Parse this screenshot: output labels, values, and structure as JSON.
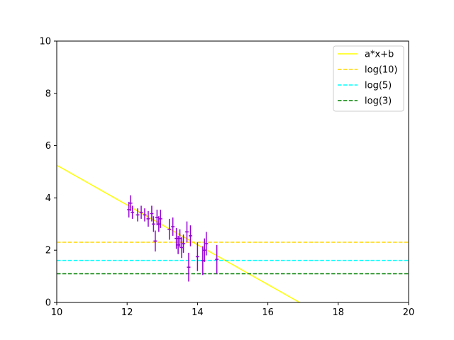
{
  "chart_data": {
    "type": "scatter",
    "title": "",
    "xlabel": "",
    "ylabel": "",
    "xlim": [
      10,
      20
    ],
    "ylim": [
      0,
      10
    ],
    "xticks": [
      10,
      12,
      14,
      16,
      18,
      20
    ],
    "yticks": [
      0,
      2,
      4,
      6,
      8,
      10
    ],
    "grid": false,
    "legend_position": "top-right",
    "series": [
      {
        "name": "a*x+b",
        "kind": "line",
        "color": "#ffff00",
        "style": "solid",
        "x": [
          10,
          16.9
        ],
        "y": [
          5.25,
          0.0
        ]
      },
      {
        "name": "log(10)",
        "kind": "hline",
        "color": "#ffd700",
        "style": "dashed",
        "y": 2.303
      },
      {
        "name": "log(5)",
        "kind": "hline",
        "color": "#00ffff",
        "style": "dashed",
        "y": 1.609
      },
      {
        "name": "log(3)",
        "kind": "hline",
        "color": "#008000",
        "style": "dashed",
        "y": 1.099
      },
      {
        "kind": "errorbar",
        "color": "#9400d3",
        "points": [
          {
            "x": 12.05,
            "y": 3.55,
            "xerr": 0.05,
            "yerr": 0.3
          },
          {
            "x": 12.1,
            "y": 3.8,
            "xerr": 0.05,
            "yerr": 0.3
          },
          {
            "x": 12.15,
            "y": 3.45,
            "xerr": 0.05,
            "yerr": 0.25
          },
          {
            "x": 12.3,
            "y": 3.35,
            "xerr": 0.05,
            "yerr": 0.25
          },
          {
            "x": 12.4,
            "y": 3.45,
            "xerr": 0.05,
            "yerr": 0.25
          },
          {
            "x": 12.5,
            "y": 3.35,
            "xerr": 0.05,
            "yerr": 0.25
          },
          {
            "x": 12.6,
            "y": 3.2,
            "xerr": 0.05,
            "yerr": 0.3
          },
          {
            "x": 12.7,
            "y": 3.4,
            "xerr": 0.05,
            "yerr": 0.3
          },
          {
            "x": 12.75,
            "y": 3.0,
            "xerr": 0.05,
            "yerr": 0.3
          },
          {
            "x": 12.8,
            "y": 2.35,
            "xerr": 0.05,
            "yerr": 0.4
          },
          {
            "x": 12.85,
            "y": 3.25,
            "xerr": 0.05,
            "yerr": 0.3
          },
          {
            "x": 12.9,
            "y": 3.0,
            "xerr": 0.05,
            "yerr": 0.3
          },
          {
            "x": 12.95,
            "y": 3.2,
            "xerr": 0.05,
            "yerr": 0.35
          },
          {
            "x": 13.2,
            "y": 2.8,
            "xerr": 0.05,
            "yerr": 0.4
          },
          {
            "x": 13.3,
            "y": 2.9,
            "xerr": 0.05,
            "yerr": 0.35
          },
          {
            "x": 13.4,
            "y": 2.45,
            "xerr": 0.05,
            "yerr": 0.4
          },
          {
            "x": 13.45,
            "y": 2.2,
            "xerr": 0.05,
            "yerr": 0.35
          },
          {
            "x": 13.5,
            "y": 2.45,
            "xerr": 0.05,
            "yerr": 0.35
          },
          {
            "x": 13.55,
            "y": 2.1,
            "xerr": 0.05,
            "yerr": 0.4
          },
          {
            "x": 13.6,
            "y": 2.25,
            "xerr": 0.05,
            "yerr": 0.35
          },
          {
            "x": 13.7,
            "y": 2.7,
            "xerr": 0.05,
            "yerr": 0.4
          },
          {
            "x": 13.75,
            "y": 1.35,
            "xerr": 0.05,
            "yerr": 0.55
          },
          {
            "x": 13.8,
            "y": 2.55,
            "xerr": 0.05,
            "yerr": 0.4
          },
          {
            "x": 14.0,
            "y": 1.75,
            "xerr": 0.05,
            "yerr": 0.55
          },
          {
            "x": 14.15,
            "y": 1.6,
            "xerr": 0.05,
            "yerr": 0.55
          },
          {
            "x": 14.2,
            "y": 2.0,
            "xerr": 0.05,
            "yerr": 0.45
          },
          {
            "x": 14.25,
            "y": 2.25,
            "xerr": 0.05,
            "yerr": 0.45
          },
          {
            "x": 14.55,
            "y": 1.65,
            "xerr": 0.05,
            "yerr": 0.55
          }
        ]
      }
    ]
  }
}
